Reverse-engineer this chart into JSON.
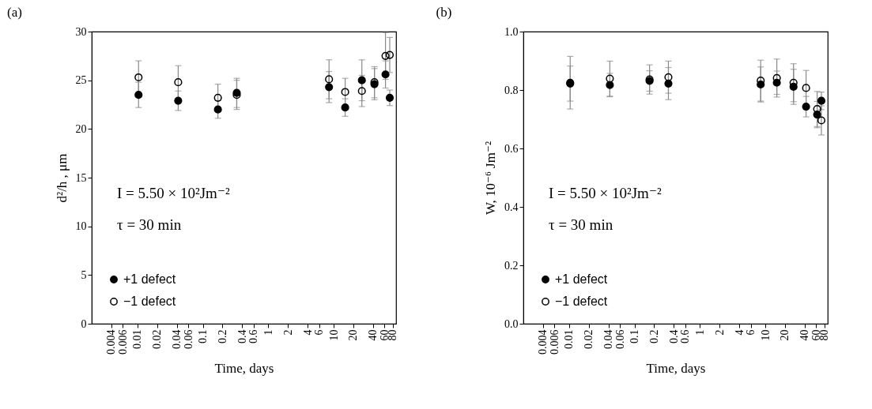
{
  "chart_data": [
    {
      "type": "scatter",
      "title": "(a)",
      "xlabel": "Time, days",
      "ylabel": "d²/h , μm",
      "log": "x",
      "xlim": [
        0.002,
        90
      ],
      "xticks": [
        0.004,
        0.006,
        0.01,
        0.02,
        0.04,
        0.06,
        0.1,
        0.2,
        0.4,
        0.6,
        1,
        2,
        4,
        6,
        10,
        20,
        40,
        60,
        80
      ],
      "ylim": [
        0,
        30
      ],
      "yticks": [
        0,
        5,
        10,
        15,
        20,
        25,
        30
      ],
      "marker": "circle",
      "legend": "bottom left",
      "annotations": [
        "I =  5.50 × 10²Jm⁻²",
        "τ = 30 min"
      ],
      "x": [
        0.0104,
        0.042,
        0.17,
        0.33,
        8.5,
        15,
        27,
        42,
        62,
        72
      ],
      "series": [
        {
          "name": "+1 defect",
          "color": "#000000",
          "values": [
            23.5,
            22.9,
            22.0,
            23.7,
            24.3,
            22.2,
            25.0,
            24.6,
            25.6,
            23.2
          ],
          "errors": [
            1.3,
            1.0,
            0.9,
            1.5,
            1.6,
            0.9,
            2.1,
            1.6,
            1.4,
            0.8
          ]
        },
        {
          "name": "−1 defect",
          "color": "#000000",
          "values": [
            25.3,
            24.8,
            23.2,
            23.5,
            25.1,
            23.8,
            23.9,
            24.8,
            27.5,
            27.6
          ],
          "errors": [
            1.7,
            1.7,
            1.4,
            1.5,
            2.0,
            1.4,
            1.6,
            1.6,
            2.4,
            1.8
          ]
        }
      ]
    },
    {
      "type": "scatter",
      "title": "(b)",
      "xlabel": "Time, days",
      "ylabel": "W, 10⁻⁶ Jm⁻²",
      "log": "x",
      "xlim": [
        0.002,
        90
      ],
      "xticks": [
        0.004,
        0.006,
        0.01,
        0.02,
        0.04,
        0.06,
        0.1,
        0.2,
        0.4,
        0.6,
        1,
        2,
        4,
        6,
        10,
        20,
        40,
        60,
        80
      ],
      "ylim": [
        0,
        1
      ],
      "yticks": [
        {
          "value": 0,
          "label": "0.0"
        },
        0.2,
        0.4,
        0.6,
        0.8,
        {
          "value": 1,
          "label": "1.0"
        }
      ],
      "marker": "circle",
      "legend": "bottom left",
      "annotations": [
        "I =  5.50 × 10²Jm⁻²",
        "τ = 30 min"
      ],
      "x": [
        0.0104,
        0.042,
        0.17,
        0.33,
        8.5,
        15,
        27,
        42,
        62,
        72
      ],
      "series": [
        {
          "name": "+1 defect",
          "color": "#000000",
          "values": [
            0.822,
            0.817,
            0.831,
            0.822,
            0.819,
            0.825,
            0.811,
            0.743,
            0.716,
            0.763
          ],
          "errors": [
            0.06,
            0.04,
            0.035,
            0.055,
            0.06,
            0.04,
            0.06,
            0.035,
            0.045,
            0.03
          ]
        },
        {
          "name": "−1 defect",
          "color": "#000000",
          "values": [
            0.825,
            0.839,
            0.836,
            0.844,
            0.832,
            0.841,
            0.825,
            0.807,
            0.735,
            0.696
          ],
          "errors": [
            0.09,
            0.06,
            0.05,
            0.055,
            0.07,
            0.065,
            0.065,
            0.06,
            0.06,
            0.05
          ]
        }
      ]
    }
  ]
}
